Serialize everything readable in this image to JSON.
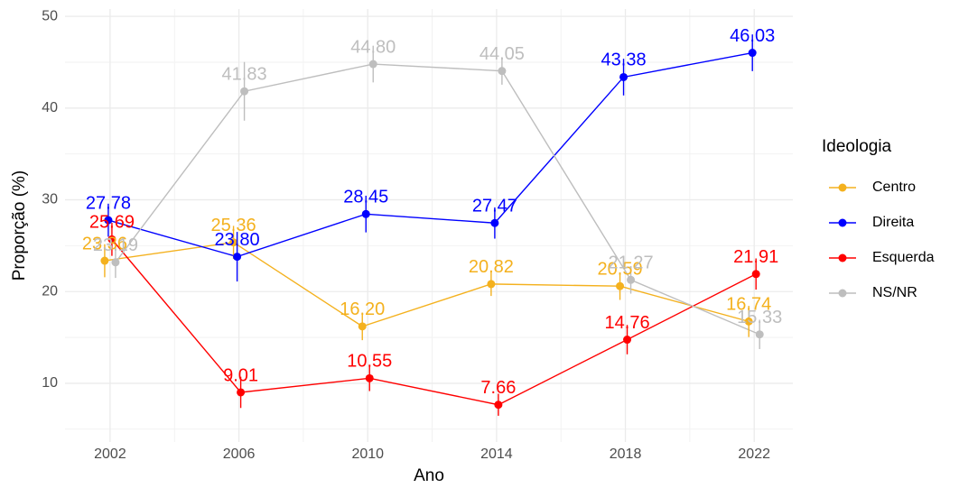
{
  "chart_data": {
    "type": "line",
    "x_label": "Ano",
    "y_label": "Proporção (%)",
    "x": [
      2002,
      2006,
      2010,
      2014,
      2018,
      2022
    ],
    "xlim": [
      2000.6,
      2023.2
    ],
    "xticks": [
      2002,
      2006,
      2010,
      2014,
      2018,
      2022
    ],
    "ylim": [
      3.6,
      50.8
    ],
    "yticks": [
      10,
      20,
      30,
      40,
      50
    ],
    "grid": true,
    "legend_title": "Ideologia",
    "legend_position": "right",
    "series": [
      {
        "name": "Centro",
        "color": "#f4b11e",
        "values": [
          23.36,
          25.36,
          16.2,
          20.82,
          20.59,
          16.74
        ],
        "value_labels": [
          "23.36",
          "25.36",
          "16.20",
          "20.82",
          "20.59",
          "16.74"
        ],
        "errors": [
          1.8,
          1.8,
          1.5,
          1.3,
          1.5,
          1.7
        ]
      },
      {
        "name": "Direita",
        "color": "#0000ff",
        "values": [
          27.78,
          23.8,
          28.45,
          27.47,
          43.38,
          46.03
        ],
        "value_labels": [
          "27.78",
          "23.80",
          "28.45",
          "27.47",
          "43.38",
          "46.03"
        ],
        "errors": [
          1.8,
          2.7,
          2.0,
          1.7,
          2.0,
          2.0
        ]
      },
      {
        "name": "Esquerda",
        "color": "#ff0000",
        "values": [
          25.69,
          9.01,
          10.55,
          7.66,
          14.76,
          21.91
        ],
        "value_labels": [
          "25.69",
          "9.01",
          "10.55",
          "7.66",
          "14.76",
          "21.91"
        ],
        "errors": [
          1.8,
          1.7,
          1.4,
          1.2,
          1.6,
          1.7
        ]
      },
      {
        "name": "NS/NR",
        "color": "#bebebe",
        "values": [
          23.19,
          41.83,
          44.8,
          44.05,
          21.27,
          15.33
        ],
        "value_labels": [
          "23.19",
          "41.83",
          "44.80",
          "44.05",
          "21.27",
          "15.33"
        ],
        "errors": [
          1.7,
          3.2,
          2.0,
          1.5,
          1.5,
          1.6
        ]
      }
    ]
  }
}
